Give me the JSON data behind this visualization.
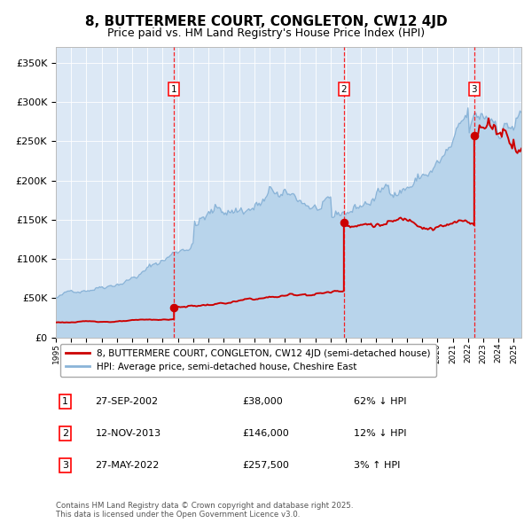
{
  "title": "8, BUTTERMERE COURT, CONGLETON, CW12 4JD",
  "subtitle": "Price paid vs. HM Land Registry's House Price Index (HPI)",
  "hpi_label": "HPI: Average price, semi-detached house, Cheshire East",
  "property_label": "8, BUTTERMERE COURT, CONGLETON, CW12 4JD (semi-detached house)",
  "footnote": "Contains HM Land Registry data © Crown copyright and database right 2025.\nThis data is licensed under the Open Government Licence v3.0.",
  "transactions": [
    {
      "num": 1,
      "date": "27-SEP-2002",
      "price": 38000,
      "hpi_rel": "62% ↓ HPI"
    },
    {
      "num": 2,
      "date": "12-NOV-2013",
      "price": 146000,
      "hpi_rel": "12% ↓ HPI"
    },
    {
      "num": 3,
      "date": "27-MAY-2022",
      "price": 257500,
      "hpi_rel": "3% ↑ HPI"
    }
  ],
  "transaction_years": [
    2002.74,
    2013.87,
    2022.41
  ],
  "transaction_prices": [
    38000,
    146000,
    257500
  ],
  "ylim": [
    0,
    370000
  ],
  "xlim_start": 1995.0,
  "xlim_end": 2025.5,
  "hpi_color": "#8ab4d8",
  "hpi_fill_color": "#b8d4eb",
  "property_color": "#cc0000",
  "background_color": "#dce8f5",
  "title_fontsize": 11,
  "subtitle_fontsize": 9
}
